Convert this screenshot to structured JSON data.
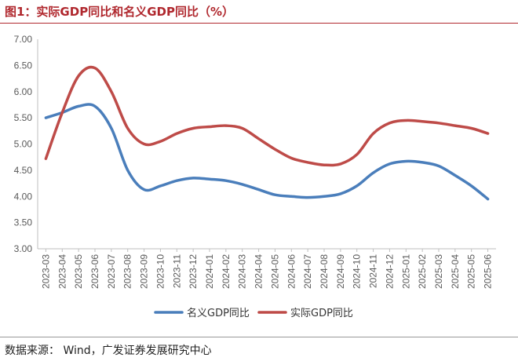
{
  "title": "图1：实际GDP同比和名义GDP同比（%）",
  "source": "数据来源： Wind，广发证券发展研究中心",
  "colors": {
    "nominal": "#4a7ebb",
    "real": "#be4b48",
    "title": "#b0282e"
  },
  "chart_data": {
    "type": "line",
    "title": "图1：实际GDP同比和名义GDP同比（%）",
    "xlabel": "",
    "ylabel": "",
    "ylim": [
      3.0,
      7.0
    ],
    "yticks": [
      "3.00",
      "3.50",
      "4.00",
      "4.50",
      "5.00",
      "5.50",
      "6.00",
      "6.50",
      "7.00"
    ],
    "grid": false,
    "legend_position": "bottom",
    "x": [
      "2023-03",
      "2023-04",
      "2023-05",
      "2023-06",
      "2023-07",
      "2023-08",
      "2023-09",
      "2023-10",
      "2023-11",
      "2023-12",
      "2024-01",
      "2024-02",
      "2024-03",
      "2024-04",
      "2024-05",
      "2024-06",
      "2024-07",
      "2024-08",
      "2024-09",
      "2024-10",
      "2024-11",
      "2024-12",
      "2025-01",
      "2025-02",
      "2025-03",
      "2025-04",
      "2025-05",
      "2025-06"
    ],
    "series": [
      {
        "name": "名义GDP同比",
        "color": "#4a7ebb",
        "values": [
          5.5,
          5.6,
          5.72,
          5.72,
          5.3,
          4.5,
          4.13,
          4.2,
          4.3,
          4.35,
          4.33,
          4.3,
          4.23,
          4.13,
          4.03,
          4.0,
          3.98,
          4.0,
          4.05,
          4.2,
          4.45,
          4.62,
          4.67,
          4.65,
          4.58,
          4.4,
          4.2,
          3.95
        ]
      },
      {
        "name": "实际GDP同比",
        "color": "#be4b48",
        "values": [
          4.72,
          5.6,
          6.3,
          6.45,
          6.0,
          5.3,
          5.0,
          5.05,
          5.2,
          5.3,
          5.33,
          5.35,
          5.3,
          5.1,
          4.9,
          4.73,
          4.65,
          4.6,
          4.62,
          4.8,
          5.2,
          5.4,
          5.45,
          5.43,
          5.4,
          5.35,
          5.3,
          5.2
        ]
      }
    ]
  }
}
